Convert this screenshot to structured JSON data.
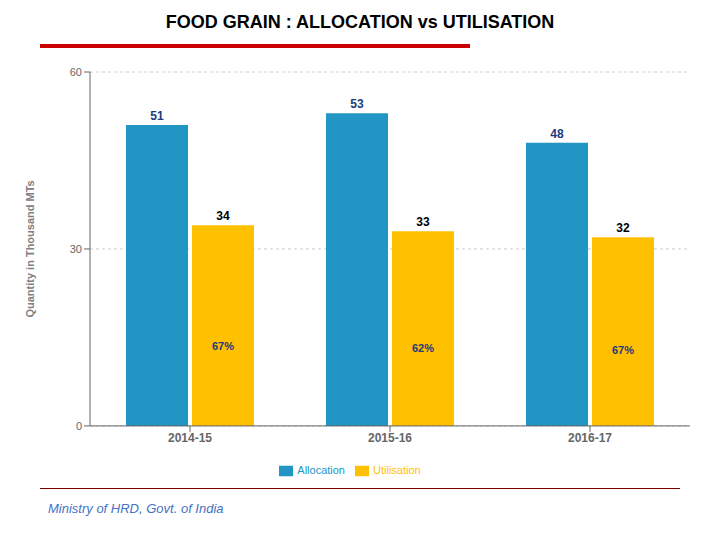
{
  "chart_data": {
    "type": "bar",
    "title": "FOOD GRAIN : ALLOCATION vs UTILISATION",
    "ylabel": "Quantity in  Thousand MTs",
    "categories": [
      "2014-15",
      "2015-16",
      "2016-17"
    ],
    "series": [
      {
        "name": "Allocation",
        "color": "#2196C4",
        "values": [
          51,
          53,
          48
        ]
      },
      {
        "name": "Utilisation",
        "color": "#FFC000",
        "values": [
          34,
          33,
          32
        ],
        "percent_labels": [
          "67%",
          "62%",
          "67%"
        ]
      }
    ],
    "ylim": [
      0,
      60
    ],
    "yticks": [
      0,
      30,
      60
    ],
    "grid": true,
    "legend": "bottom",
    "data_labels": true,
    "footer": "Ministry of HRD,  Govt. of India"
  }
}
